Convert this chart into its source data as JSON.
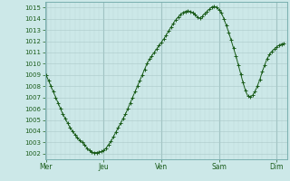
{
  "bg_color": "#cce8e8",
  "line_color": "#1a5c1a",
  "marker_color": "#1a5c1a",
  "grid_major_color": "#aac8c8",
  "grid_minor_color": "#bdd8d8",
  "tick_label_color": "#1a5c1a",
  "ylim": [
    1001.5,
    1015.5
  ],
  "yticks": [
    1002,
    1003,
    1004,
    1005,
    1006,
    1007,
    1008,
    1009,
    1010,
    1011,
    1012,
    1013,
    1014,
    1015
  ],
  "day_labels": [
    "Mer",
    "Jeu",
    "Ven",
    "Sam",
    "Dim"
  ],
  "day_positions": [
    0,
    1,
    2,
    3,
    4
  ],
  "xlim": [
    -0.02,
    4.18
  ],
  "x_values": [
    0.0,
    0.042,
    0.083,
    0.125,
    0.167,
    0.208,
    0.25,
    0.292,
    0.333,
    0.375,
    0.417,
    0.458,
    0.5,
    0.542,
    0.583,
    0.625,
    0.667,
    0.708,
    0.75,
    0.792,
    0.833,
    0.875,
    0.917,
    0.958,
    1.0,
    1.042,
    1.083,
    1.125,
    1.167,
    1.208,
    1.25,
    1.292,
    1.333,
    1.375,
    1.417,
    1.458,
    1.5,
    1.542,
    1.583,
    1.625,
    1.667,
    1.708,
    1.75,
    1.792,
    1.833,
    1.875,
    1.917,
    1.958,
    2.0,
    2.042,
    2.083,
    2.125,
    2.167,
    2.208,
    2.25,
    2.292,
    2.333,
    2.375,
    2.417,
    2.458,
    2.5,
    2.542,
    2.583,
    2.625,
    2.667,
    2.708,
    2.75,
    2.792,
    2.833,
    2.875,
    2.917,
    2.958,
    3.0,
    3.042,
    3.083,
    3.125,
    3.167,
    3.208,
    3.25,
    3.292,
    3.333,
    3.375,
    3.417,
    3.458,
    3.5,
    3.542,
    3.583,
    3.625,
    3.667,
    3.708,
    3.75,
    3.792,
    3.833,
    3.875,
    3.917,
    3.958,
    4.0,
    4.042,
    4.083,
    4.125
  ],
  "y_values": [
    1009.0,
    1008.5,
    1008.0,
    1007.5,
    1007.0,
    1006.5,
    1006.0,
    1005.5,
    1005.1,
    1004.7,
    1004.3,
    1004.0,
    1003.7,
    1003.4,
    1003.2,
    1003.0,
    1002.8,
    1002.5,
    1002.3,
    1002.15,
    1002.1,
    1002.1,
    1002.15,
    1002.2,
    1002.3,
    1002.5,
    1002.8,
    1003.1,
    1003.5,
    1003.9,
    1004.3,
    1004.7,
    1005.1,
    1005.5,
    1006.0,
    1006.5,
    1007.0,
    1007.5,
    1008.0,
    1008.5,
    1009.0,
    1009.5,
    1010.0,
    1010.4,
    1010.7,
    1011.0,
    1011.3,
    1011.6,
    1011.9,
    1012.2,
    1012.55,
    1012.9,
    1013.25,
    1013.6,
    1013.9,
    1014.15,
    1014.4,
    1014.55,
    1014.65,
    1014.7,
    1014.65,
    1014.55,
    1014.35,
    1014.15,
    1014.05,
    1014.2,
    1014.45,
    1014.65,
    1014.85,
    1015.05,
    1015.1,
    1015.0,
    1014.8,
    1014.5,
    1014.0,
    1013.4,
    1012.8,
    1012.1,
    1011.4,
    1010.7,
    1009.9,
    1009.1,
    1008.3,
    1007.6,
    1007.1,
    1007.05,
    1007.2,
    1007.55,
    1008.05,
    1008.6,
    1009.3,
    1009.9,
    1010.45,
    1010.8,
    1011.1,
    1011.3,
    1011.5,
    1011.65,
    1011.75,
    1011.8
  ]
}
